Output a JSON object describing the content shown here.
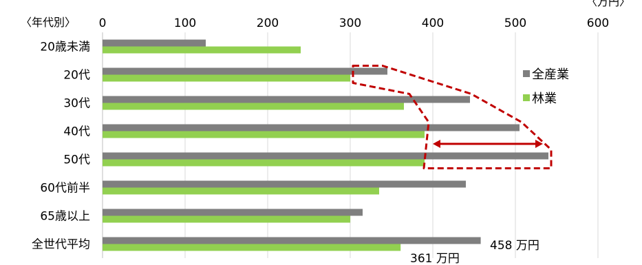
{
  "chart_data": {
    "type": "bar",
    "orientation": "horizontal",
    "y_axis_label": "〈年代別〉",
    "unit_label": "〈万円〉",
    "categories": [
      "20歳未満",
      "20代",
      "30代",
      "40代",
      "50代",
      "60代前半",
      "65歳以上",
      "全世代平均"
    ],
    "series": [
      {
        "name": "全産業",
        "color": "#7f7f7f",
        "values": [
          125,
          345,
          445,
          505,
          540,
          440,
          315,
          458
        ]
      },
      {
        "name": "林業",
        "color": "#92d050",
        "values": [
          240,
          300,
          365,
          390,
          390,
          335,
          300,
          361
        ]
      }
    ],
    "xlim": [
      0,
      600
    ],
    "x_ticks": [
      "0",
      "100",
      "200",
      "300",
      "400",
      "500",
      "600"
    ],
    "grid": true,
    "legend_position": "right",
    "annotations": {
      "all_industry_avg_label": "458 万円",
      "forestry_avg_label": "361 万円",
      "outline_color": "#c00000"
    }
  }
}
